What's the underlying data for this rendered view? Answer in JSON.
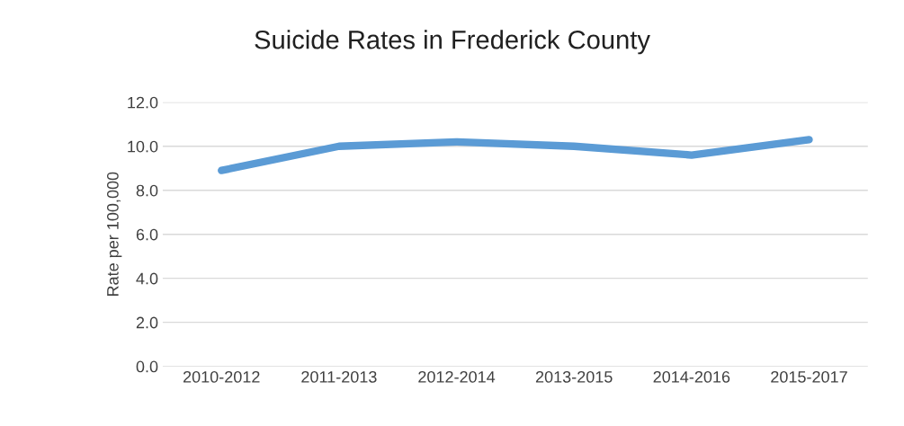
{
  "chart_data": {
    "type": "line",
    "title": "Suicide Rates in Frederick County",
    "ylabel": "Rate per 100,000",
    "categories": [
      "2010-2012",
      "2011-2013",
      "2012-2014",
      "2013-2015",
      "2014-2016",
      "2015-2017"
    ],
    "series": [
      {
        "color": "#5b9bd5",
        "values": [
          8.9,
          10.0,
          10.2,
          10.0,
          9.6,
          10.3
        ]
      }
    ],
    "ylim": [
      0,
      12
    ],
    "yticks": [
      {
        "value": 0,
        "label": "0.0"
      },
      {
        "value": 2,
        "label": "2.0"
      },
      {
        "value": 4,
        "label": "4.0"
      },
      {
        "value": 6,
        "label": "6.0"
      },
      {
        "value": 8,
        "label": "8.0"
      },
      {
        "value": 10,
        "label": "10.0"
      },
      {
        "value": 12,
        "label": "12.0"
      }
    ],
    "grid": "y",
    "legend": false,
    "marker": "none",
    "line_style": "solid"
  }
}
